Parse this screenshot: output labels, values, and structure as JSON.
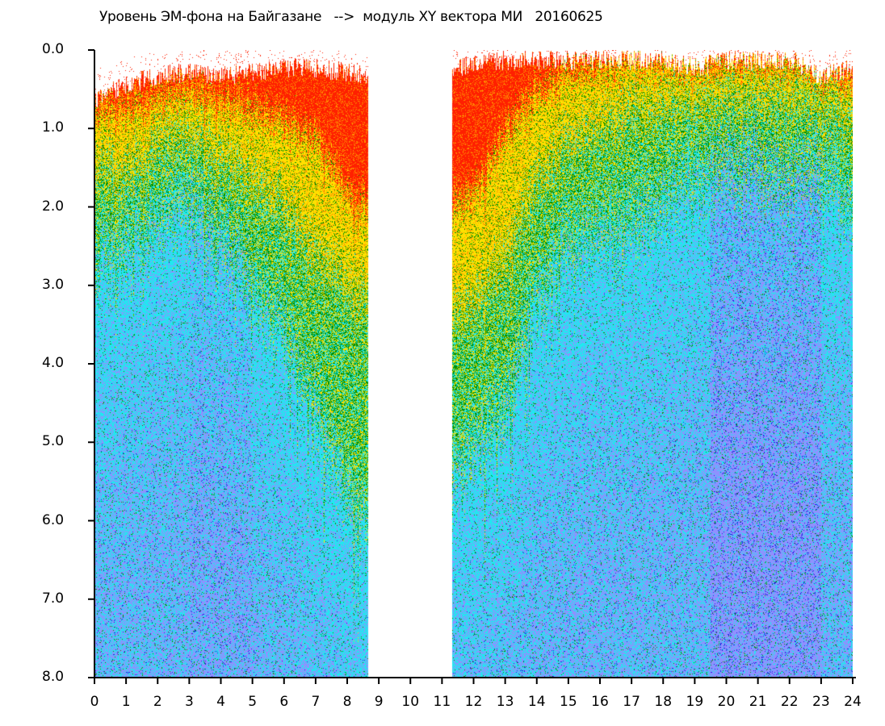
{
  "chart_data": {
    "type": "heatmap",
    "title": "Уровень ЭМ-фона на Байгазане   -->  модуль XY вектора МИ   20160625",
    "xlabel": "",
    "ylabel": "",
    "xlim": [
      0,
      24
    ],
    "ylim": [
      8.0,
      0.0
    ],
    "x_ticks": [
      "0",
      "1",
      "2",
      "3",
      "4",
      "5",
      "6",
      "7",
      "8",
      "9",
      "10",
      "11",
      "12",
      "13",
      "14",
      "15",
      "16",
      "17",
      "18",
      "19",
      "20",
      "21",
      "22",
      "23",
      "24"
    ],
    "y_ticks": [
      "0.0",
      "1.0",
      "2.0",
      "3.0",
      "4.0",
      "5.0",
      "6.0",
      "7.0",
      "8.0"
    ],
    "data_gap_hours": [
      8.65,
      11.3
    ],
    "color_bands": [
      "red",
      "yellow",
      "green",
      "cyan",
      "blue"
    ],
    "colors": {
      "red": "#ff2000",
      "orange": "#ff9000",
      "yellow": "#ffe000",
      "green": "#009000",
      "cyan": "#20e8f0",
      "violet": "#9090ff",
      "blue": "#2020e0"
    },
    "profiles": [
      {
        "hour": 0,
        "data_top": 0.5,
        "red_to": 0.8,
        "yellow_to": 1.6,
        "green_to": 2.8
      },
      {
        "hour": 1,
        "data_top": 0.3,
        "red_to": 0.7,
        "yellow_to": 1.5,
        "green_to": 2.4
      },
      {
        "hour": 2,
        "data_top": 0.2,
        "red_to": 0.6,
        "yellow_to": 1.2,
        "green_to": 2.1
      },
      {
        "hour": 3,
        "data_top": 0.15,
        "red_to": 0.5,
        "yellow_to": 1.1,
        "green_to": 2.0
      },
      {
        "hour": 4,
        "data_top": 0.2,
        "red_to": 0.6,
        "yellow_to": 1.3,
        "green_to": 2.3
      },
      {
        "hour": 5,
        "data_top": 0.15,
        "red_to": 0.7,
        "yellow_to": 1.6,
        "green_to": 2.9
      },
      {
        "hour": 6,
        "data_top": 0.1,
        "red_to": 0.9,
        "yellow_to": 2.0,
        "green_to": 3.6
      },
      {
        "hour": 7,
        "data_top": 0.1,
        "red_to": 1.1,
        "yellow_to": 2.6,
        "green_to": 4.6
      },
      {
        "hour": 8,
        "data_top": 0.15,
        "red_to": 1.8,
        "yellow_to": 3.0,
        "green_to": 5.6
      },
      {
        "hour": 8.65,
        "data_top": 0.2,
        "red_to": 2.0,
        "yellow_to": 3.2,
        "green_to": 6.0
      },
      {
        "hour": 11.3,
        "data_top": 0.1,
        "red_to": 2.0,
        "yellow_to": 3.5,
        "green_to": 5.5
      },
      {
        "hour": 12,
        "data_top": 0.05,
        "red_to": 1.8,
        "yellow_to": 3.2,
        "green_to": 5.0
      },
      {
        "hour": 13,
        "data_top": 0.0,
        "red_to": 1.0,
        "yellow_to": 2.6,
        "green_to": 4.5
      },
      {
        "hour": 14,
        "data_top": 0.0,
        "red_to": 0.5,
        "yellow_to": 1.6,
        "green_to": 3.0
      },
      {
        "hour": 15,
        "data_top": 0.0,
        "red_to": 0.3,
        "yellow_to": 1.2,
        "green_to": 2.5
      },
      {
        "hour": 16,
        "data_top": 0.0,
        "red_to": 0.2,
        "yellow_to": 1.0,
        "green_to": 2.3
      },
      {
        "hour": 17,
        "data_top": 0.0,
        "red_to": 0.1,
        "yellow_to": 0.8,
        "green_to": 2.2
      },
      {
        "hour": 18,
        "data_top": 0.0,
        "red_to": 0.1,
        "yellow_to": 0.7,
        "green_to": 1.8
      },
      {
        "hour": 19,
        "data_top": 0.1,
        "red_to": 0.2,
        "yellow_to": 0.7,
        "green_to": 1.6
      },
      {
        "hour": 20,
        "data_top": 0.0,
        "red_to": 0.1,
        "yellow_to": 0.6,
        "green_to": 1.5
      },
      {
        "hour": 21,
        "data_top": 0.0,
        "red_to": 0.1,
        "yellow_to": 0.6,
        "green_to": 1.5
      },
      {
        "hour": 22,
        "data_top": 0.0,
        "red_to": 0.1,
        "yellow_to": 0.6,
        "green_to": 1.6
      },
      {
        "hour": 23,
        "data_top": 0.2,
        "red_to": 0.3,
        "yellow_to": 0.7,
        "green_to": 1.6
      },
      {
        "hour": 24,
        "data_top": 0.1,
        "red_to": 0.3,
        "yellow_to": 0.8,
        "green_to": 1.8
      }
    ],
    "grid": false,
    "legend": "none"
  }
}
